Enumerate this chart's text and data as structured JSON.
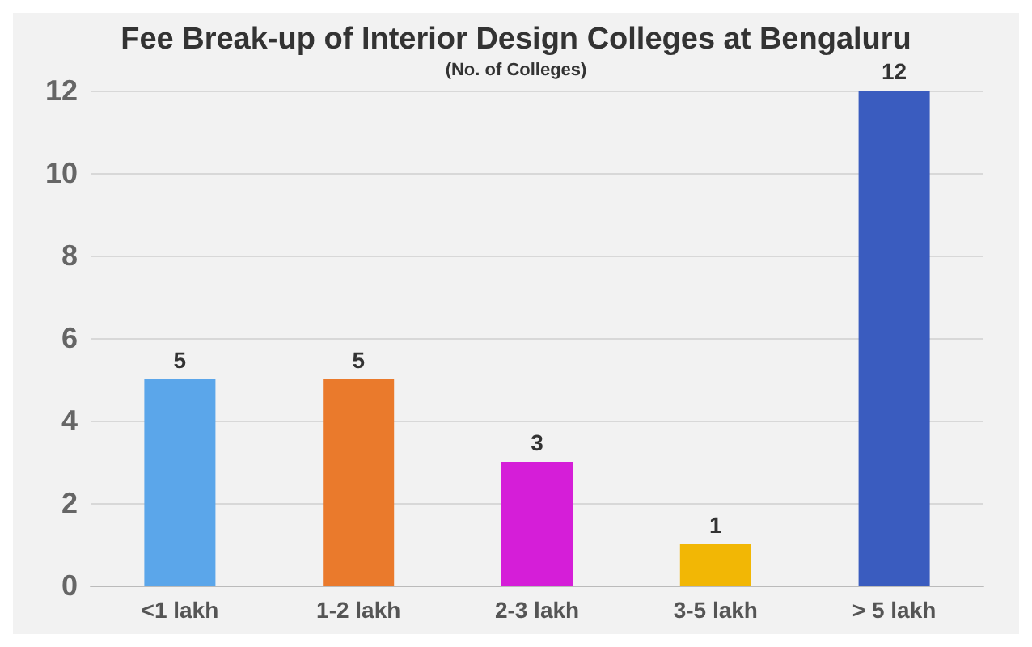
{
  "chart_data": {
    "type": "bar",
    "title": "Fee Break-up of Interior Design Colleges at Bengaluru",
    "subtitle": "(No. of Colleges)",
    "categories": [
      "<1 lakh",
      "1-2 lakh",
      "2-3 lakh",
      "3-5 lakh",
      "> 5 lakh"
    ],
    "values": [
      5,
      5,
      3,
      1,
      12
    ],
    "colors": [
      "#5ba6ea",
      "#ea7a2c",
      "#d51ed8",
      "#f2b705",
      "#3a5cbf"
    ],
    "ylim": [
      0,
      12
    ],
    "yticks": [
      0,
      2,
      4,
      6,
      8,
      10,
      12
    ],
    "grid": "y",
    "data_labels": true
  }
}
